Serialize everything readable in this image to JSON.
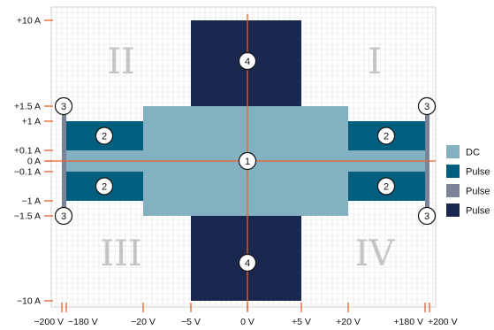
{
  "colors": {
    "dc": "#84b1c1",
    "pulse_a": "#005f7f",
    "pulse_b": "#7a8398",
    "pulse_c": "#1a2850",
    "axis": "#e8612c",
    "grid": "#e3e3e3",
    "quadrant_label": "#c4c4c4"
  },
  "y_ticks": [
    {
      "label": "+10 A",
      "value": 10
    },
    {
      "label": "+1.5 A",
      "value": 1.5
    },
    {
      "label": "+1 A",
      "value": 1
    },
    {
      "label": "+0.1 A",
      "value": 0.1
    },
    {
      "label": "0 A",
      "value": 0
    },
    {
      "label": "−0.1 A",
      "value": -0.1
    },
    {
      "label": "−1 A",
      "value": -1
    },
    {
      "label": "−1.5 A",
      "value": -1.5
    },
    {
      "label": "−10 A",
      "value": -10
    }
  ],
  "x_ticks": [
    {
      "label": "−200 V",
      "value": -200
    },
    {
      "label": "−180 V",
      "value": -180
    },
    {
      "label": "−20 V",
      "value": -20
    },
    {
      "label": "−5 V",
      "value": -5
    },
    {
      "label": "0 V",
      "value": 0
    },
    {
      "label": "+5 V",
      "value": 5
    },
    {
      "label": "+20 V",
      "value": 20
    },
    {
      "label": "+180 V",
      "value": 180
    },
    {
      "label": "+200 V",
      "value": 200
    }
  ],
  "quadrants": [
    {
      "label": "I",
      "position": "upper-right"
    },
    {
      "label": "II",
      "position": "upper-left"
    },
    {
      "label": "III",
      "position": "lower-left"
    },
    {
      "label": "IV",
      "position": "lower-right"
    }
  ],
  "regions": [
    {
      "kind": "pulse_b",
      "badge": "",
      "v": [
        -200,
        200
      ],
      "i": [
        -0.1,
        0.1
      ]
    },
    {
      "kind": "pulse_b",
      "badge": "3",
      "v": [
        -200,
        -180
      ],
      "i": [
        0.1,
        1.5
      ]
    },
    {
      "kind": "pulse_b",
      "badge": "3",
      "v": [
        180,
        200
      ],
      "i": [
        0.1,
        1.5
      ]
    },
    {
      "kind": "pulse_b",
      "badge": "3",
      "v": [
        -200,
        -180
      ],
      "i": [
        -1.5,
        -0.1
      ]
    },
    {
      "kind": "pulse_b",
      "badge": "3",
      "v": [
        180,
        200
      ],
      "i": [
        -1.5,
        -0.1
      ]
    },
    {
      "kind": "pulse_a",
      "badge": "2",
      "v": [
        -180,
        -20
      ],
      "i": [
        0.1,
        1
      ]
    },
    {
      "kind": "pulse_a",
      "badge": "2",
      "v": [
        20,
        180
      ],
      "i": [
        0.1,
        1
      ]
    },
    {
      "kind": "pulse_a",
      "badge": "2",
      "v": [
        -180,
        -20
      ],
      "i": [
        -1,
        -0.1
      ]
    },
    {
      "kind": "pulse_a",
      "badge": "2",
      "v": [
        20,
        180
      ],
      "i": [
        -1,
        -0.1
      ]
    },
    {
      "kind": "pulse_c",
      "badge": "4",
      "v": [
        -5,
        5
      ],
      "i": [
        1.5,
        10
      ]
    },
    {
      "kind": "pulse_c",
      "badge": "4",
      "v": [
        -5,
        5
      ],
      "i": [
        -10,
        -1.5
      ]
    },
    {
      "kind": "dc",
      "badge": "1",
      "v": [
        -20,
        20
      ],
      "i": [
        -1.5,
        1.5
      ]
    },
    {
      "kind": "dc",
      "badge": "",
      "v": [
        -180,
        180
      ],
      "i": [
        -0.1,
        0.1
      ]
    }
  ],
  "legend": [
    {
      "label": "DC",
      "kind": "dc"
    },
    {
      "label": "Pulse",
      "kind": "pulse_a"
    },
    {
      "label": "Pulse",
      "kind": "pulse_b"
    },
    {
      "label": "Pulse",
      "kind": "pulse_c"
    }
  ]
}
